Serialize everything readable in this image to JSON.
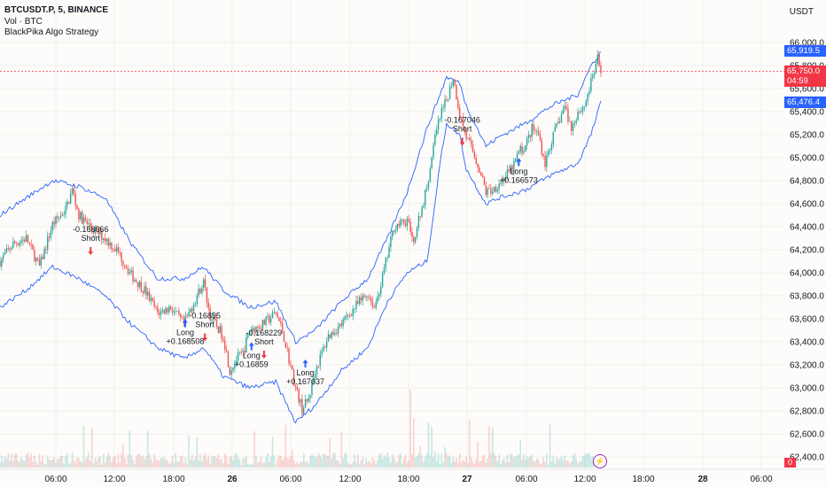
{
  "legend": {
    "symbol": "BTCUSDT.P, 5, BINANCE",
    "vol": "Vol · BTC",
    "strategy": "BlackPika Algo Strategy"
  },
  "currency": "USDT",
  "price_tags": {
    "upper_band": "65,919.5",
    "last_price": "65,750.0",
    "countdown": "04:59",
    "lower_band": "65,476.4",
    "volume_zero": "0"
  },
  "colors": {
    "up": "#26a69a",
    "down": "#ef5350",
    "band": "#2962ff",
    "buy_arrow": "#2962ff",
    "sell_arrow": "#f23645",
    "price_line": "#f23645",
    "upper_tag": "#2962ff",
    "lower_tag": "#2962ff"
  },
  "chart_data": {
    "type": "candlestick",
    "x_ticks": [
      "06:00",
      "12:00",
      "18:00",
      "26",
      "06:00",
      "12:00",
      "18:00",
      "27",
      "06:00",
      "12:00",
      "18:00",
      "28",
      "06:00"
    ],
    "y_ticks": [
      "66,000.0",
      "65,800.0",
      "65,600.0",
      "65,400.0",
      "65,200.0",
      "65,000.0",
      "64,800.0",
      "64,600.0",
      "64,400.0",
      "64,200.0",
      "64,000.0",
      "63,800.0",
      "63,600.0",
      "63,400.0",
      "63,200.0",
      "63,000.0",
      "62,800.0",
      "62,600.0",
      "62,400.0"
    ],
    "y_range": [
      62300,
      66230
    ],
    "close_path": [
      [
        0,
        64100
      ],
      [
        2,
        64250
      ],
      [
        4,
        64300
      ],
      [
        6,
        64050
      ],
      [
        8,
        64420
      ],
      [
        10,
        64550
      ],
      [
        11,
        64720
      ],
      [
        12,
        64500
      ],
      [
        14,
        64380
      ],
      [
        16,
        64300
      ],
      [
        18,
        64180
      ],
      [
        20,
        63980
      ],
      [
        22,
        63850
      ],
      [
        24,
        63650
      ],
      [
        26,
        63700
      ],
      [
        28,
        63550
      ],
      [
        30,
        63800
      ],
      [
        31,
        63920
      ],
      [
        32,
        63620
      ],
      [
        34,
        63450
      ],
      [
        35,
        63150
      ],
      [
        36,
        63250
      ],
      [
        37,
        63300
      ],
      [
        38,
        63500
      ],
      [
        40,
        63550
      ],
      [
        42,
        63650
      ],
      [
        43,
        63500
      ],
      [
        44,
        63250
      ],
      [
        45,
        63000
      ],
      [
        46,
        62820
      ],
      [
        47,
        62900
      ],
      [
        48,
        63150
      ],
      [
        49,
        63300
      ],
      [
        50,
        63450
      ],
      [
        52,
        63550
      ],
      [
        54,
        63700
      ],
      [
        56,
        63820
      ],
      [
        57,
        63700
      ],
      [
        58,
        63900
      ],
      [
        59,
        64150
      ],
      [
        60,
        64400
      ],
      [
        62,
        64450
      ],
      [
        63,
        64300
      ],
      [
        64,
        64500
      ],
      [
        65,
        64750
      ],
      [
        66,
        65100
      ],
      [
        67,
        65350
      ],
      [
        68,
        65500
      ],
      [
        69,
        65700
      ],
      [
        70,
        65380
      ],
      [
        71,
        65180
      ],
      [
        72,
        65050
      ],
      [
        73,
        64900
      ],
      [
        74,
        64700
      ],
      [
        75,
        64720
      ],
      [
        76,
        64780
      ],
      [
        78,
        64900
      ],
      [
        79,
        65050
      ],
      [
        80,
        65100
      ],
      [
        81,
        65250
      ],
      [
        82,
        65200
      ],
      [
        83,
        64950
      ],
      [
        84,
        65150
      ],
      [
        85,
        65300
      ],
      [
        86,
        65450
      ],
      [
        87,
        65250
      ],
      [
        88,
        65400
      ],
      [
        89,
        65450
      ],
      [
        90,
        65650
      ],
      [
        91,
        65850
      ],
      [
        91.5,
        65750
      ]
    ],
    "upper_band": [
      [
        0,
        64500
      ],
      [
        4,
        64650
      ],
      [
        8,
        64800
      ],
      [
        12,
        64750
      ],
      [
        16,
        64650
      ],
      [
        20,
        64250
      ],
      [
        24,
        63950
      ],
      [
        28,
        63950
      ],
      [
        31,
        64050
      ],
      [
        34,
        63850
      ],
      [
        38,
        63700
      ],
      [
        42,
        63750
      ],
      [
        45,
        63400
      ],
      [
        48,
        63500
      ],
      [
        52,
        63750
      ],
      [
        56,
        63950
      ],
      [
        59,
        64300
      ],
      [
        62,
        64700
      ],
      [
        65,
        65250
      ],
      [
        67,
        65550
      ],
      [
        68,
        65700
      ],
      [
        70,
        65650
      ],
      [
        71,
        65450
      ],
      [
        74,
        65100
      ],
      [
        76,
        65180
      ],
      [
        80,
        65300
      ],
      [
        84,
        65450
      ],
      [
        88,
        65550
      ],
      [
        90,
        65800
      ],
      [
        91.5,
        65920
      ]
    ],
    "lower_band": [
      [
        0,
        63700
      ],
      [
        4,
        63850
      ],
      [
        8,
        64050
      ],
      [
        12,
        63950
      ],
      [
        16,
        63800
      ],
      [
        20,
        63550
      ],
      [
        24,
        63350
      ],
      [
        28,
        63250
      ],
      [
        31,
        63350
      ],
      [
        34,
        63100
      ],
      [
        38,
        63000
      ],
      [
        42,
        63050
      ],
      [
        45,
        62700
      ],
      [
        48,
        62850
      ],
      [
        52,
        63150
      ],
      [
        56,
        63350
      ],
      [
        59,
        63750
      ],
      [
        62,
        64000
      ],
      [
        65,
        64100
      ],
      [
        66,
        64500
      ],
      [
        67,
        64950
      ],
      [
        68,
        65300
      ],
      [
        70,
        65200
      ],
      [
        71,
        64900
      ],
      [
        74,
        64600
      ],
      [
        76,
        64650
      ],
      [
        80,
        64720
      ],
      [
        84,
        64850
      ],
      [
        88,
        64950
      ],
      [
        90,
        65200
      ],
      [
        91.5,
        65480
      ]
    ],
    "signals": [
      {
        "side": "sell",
        "x": 13.8,
        "price": 64200,
        "label": "Short",
        "value": "-0.168066"
      },
      {
        "side": "buy",
        "x": 28.2,
        "price": 63550,
        "label": "Long",
        "value": "+0.168508"
      },
      {
        "side": "sell",
        "x": 31.2,
        "price": 63450,
        "label": "Short",
        "value": "-0.16895"
      },
      {
        "side": "buy",
        "x": 38.3,
        "price": 63350,
        "label": "Long",
        "value": "+0.16859"
      },
      {
        "side": "sell",
        "x": 40.2,
        "price": 63300,
        "label": "Short",
        "value": "-0.168229"
      },
      {
        "side": "buy",
        "x": 46.5,
        "price": 63200,
        "label": "Long",
        "value": "+0.167637"
      },
      {
        "side": "sell",
        "x": 70.4,
        "price": 65150,
        "label": "Short",
        "value": "-0.167046"
      },
      {
        "side": "buy",
        "x": 79.0,
        "price": 64950,
        "label": "Long",
        "value": "+0.166573"
      }
    ]
  }
}
